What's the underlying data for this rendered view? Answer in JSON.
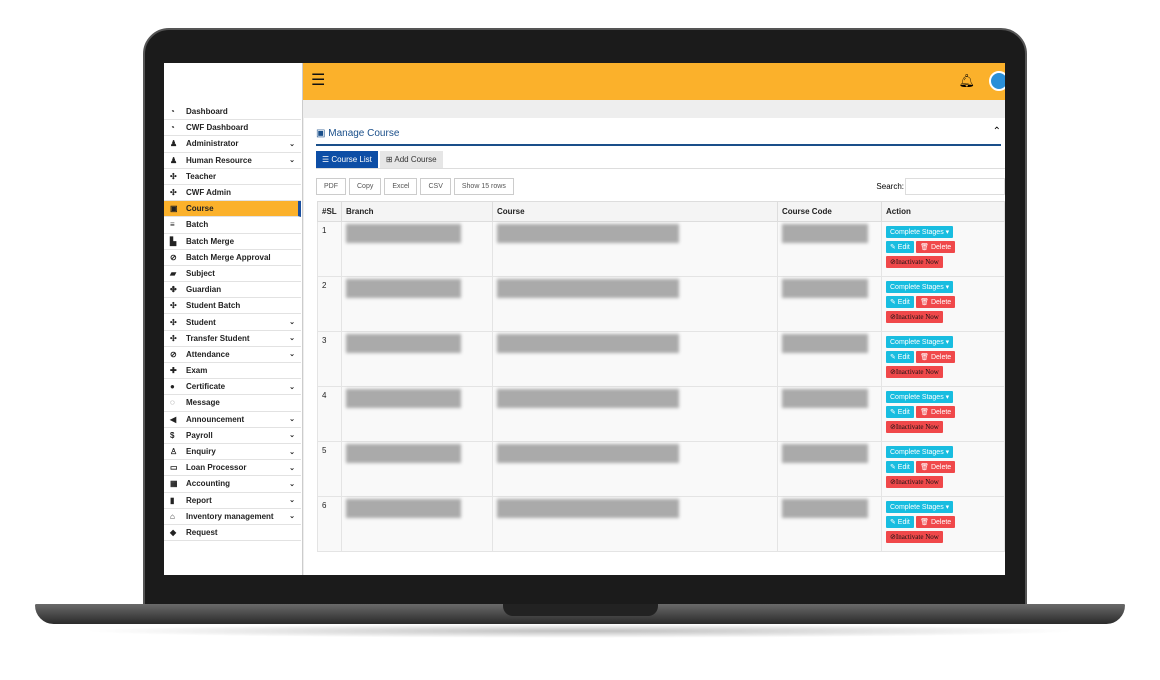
{
  "sidebar": {
    "items": [
      {
        "label": "Dashboard",
        "icon": "dashboard-icon",
        "glyph": "◔",
        "sub": false
      },
      {
        "label": "CWF Dashboard",
        "icon": "dashboard-icon",
        "glyph": "◔",
        "sub": false
      },
      {
        "label": "Administrator",
        "icon": "user-icon",
        "glyph": "♟",
        "sub": true
      },
      {
        "label": "Human Resource",
        "icon": "sitemap-icon",
        "glyph": "♟",
        "sub": true
      },
      {
        "label": "Teacher",
        "icon": "users-icon",
        "glyph": "✣",
        "sub": false
      },
      {
        "label": "CWF Admin",
        "icon": "users-icon",
        "glyph": "✣",
        "sub": false
      },
      {
        "label": "Course",
        "icon": "course-icon",
        "glyph": "▣",
        "sub": false,
        "active": true
      },
      {
        "label": "Batch",
        "icon": "bars-icon",
        "glyph": "≡",
        "sub": false
      },
      {
        "label": "Batch Merge",
        "icon": "copy-icon",
        "glyph": "▙",
        "sub": false
      },
      {
        "label": "Batch Merge Approval",
        "icon": "check-circle-icon",
        "glyph": "⊘",
        "sub": false
      },
      {
        "label": "Subject",
        "icon": "folder-icon",
        "glyph": "▰",
        "sub": false
      },
      {
        "label": "Guardian",
        "icon": "paw-icon",
        "glyph": "✤",
        "sub": false
      },
      {
        "label": "Student Batch",
        "icon": "users-icon",
        "glyph": "✣",
        "sub": false
      },
      {
        "label": "Student",
        "icon": "users-icon",
        "glyph": "✣",
        "sub": true
      },
      {
        "label": "Transfer Student",
        "icon": "users-icon",
        "glyph": "✣",
        "sub": true
      },
      {
        "label": "Attendance",
        "icon": "check-circle-icon",
        "glyph": "⊘",
        "sub": true
      },
      {
        "label": "Exam",
        "icon": "pin-icon",
        "glyph": "✚",
        "sub": false
      },
      {
        "label": "Certificate",
        "icon": "certificate-icon",
        "glyph": "●",
        "sub": true
      },
      {
        "label": "Message",
        "icon": "comments-icon",
        "glyph": "◌",
        "sub": false
      },
      {
        "label": "Announcement",
        "icon": "bullhorn-icon",
        "glyph": "◀",
        "sub": true
      },
      {
        "label": "Payroll",
        "icon": "dollar-icon",
        "glyph": "$",
        "sub": true
      },
      {
        "label": "Enquiry",
        "icon": "person-icon",
        "glyph": "♙",
        "sub": true
      },
      {
        "label": "Loan Processor",
        "icon": "money-icon",
        "glyph": "▭",
        "sub": true
      },
      {
        "label": "Accounting",
        "icon": "calculator-icon",
        "glyph": "▦",
        "sub": true
      },
      {
        "label": "Report",
        "icon": "bar-chart-icon",
        "glyph": "▮",
        "sub": true
      },
      {
        "label": "Inventory management",
        "icon": "home-icon",
        "glyph": "⌂",
        "sub": true
      },
      {
        "label": "Request",
        "icon": "tags-icon",
        "glyph": "◆",
        "sub": false
      }
    ]
  },
  "topbar": {
    "menu_icon": "hamburger-icon",
    "bell_icon": "bell-icon",
    "avatar_icon": "user-avatar-icon",
    "accent": "#fbb12b"
  },
  "panel": {
    "title": "Manage Course",
    "tabs": [
      "Course List",
      "Add Course"
    ],
    "tools": [
      "PDF",
      "Copy",
      "Excel",
      "CSV",
      "Show 15 rows"
    ],
    "search_label": "Search:"
  },
  "table": {
    "headers": [
      "#SL",
      "Branch",
      "Course",
      "Course Code",
      "Action"
    ],
    "rows": [
      "1",
      "2",
      "3",
      "4",
      "5",
      "6"
    ],
    "actions": {
      "stages": "Complete Stages ▾",
      "edit": "✎ Edit",
      "delete": "🗑 Delete",
      "inactivate": "⊘Inactivate Now"
    }
  }
}
